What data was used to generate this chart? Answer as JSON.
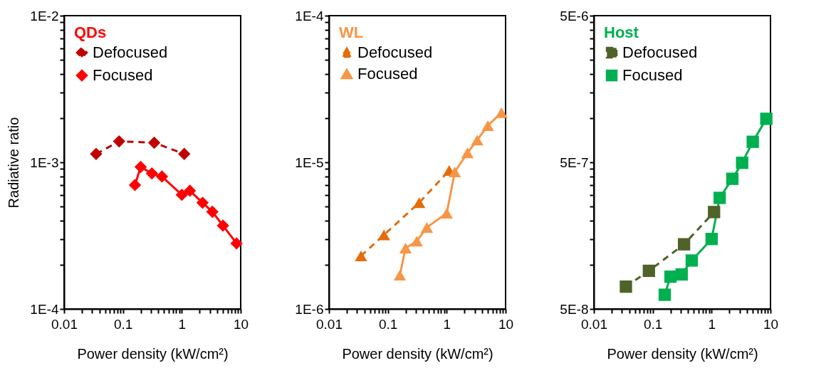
{
  "chart_data": [
    {
      "type": "line",
      "legend_title": "QDs",
      "xlabel": "Power density (kW/cm²)",
      "ylabel": "Radiative ratio",
      "log": "xy",
      "grid": false,
      "legend": "top left",
      "marker": "diamond",
      "xlim": [
        0.01,
        10
      ],
      "ylim": [
        0.0001,
        0.01
      ],
      "xticks": [
        0.01,
        {
          "value": 0.02,
          "label": null
        },
        {
          "value": 0.03,
          "label": null
        },
        {
          "value": 0.04,
          "label": null
        },
        {
          "value": 0.05,
          "label": null
        },
        {
          "value": 0.06,
          "label": null
        },
        {
          "value": 0.07,
          "label": null
        },
        {
          "value": 0.08,
          "label": null
        },
        {
          "value": 0.09,
          "label": null
        },
        0.1,
        {
          "value": 0.2,
          "label": null
        },
        {
          "value": 0.3,
          "label": null
        },
        {
          "value": 0.4,
          "label": null
        },
        {
          "value": 0.5,
          "label": null
        },
        {
          "value": 0.6,
          "label": null
        },
        {
          "value": 0.7,
          "label": null
        },
        {
          "value": 0.8,
          "label": null
        },
        {
          "value": 0.9,
          "label": null
        },
        1,
        {
          "value": 2,
          "label": null
        },
        {
          "value": 3,
          "label": null
        },
        {
          "value": 4,
          "label": null
        },
        {
          "value": 5,
          "label": null
        },
        {
          "value": 6,
          "label": null
        },
        {
          "value": 7,
          "label": null
        },
        {
          "value": 8,
          "label": null
        },
        {
          "value": 9,
          "label": null
        },
        10
      ],
      "yticks": [
        {
          "value": 0.0001,
          "label": "1E-4"
        },
        {
          "value": 0.0002,
          "label": null
        },
        {
          "value": 0.0003,
          "label": null
        },
        {
          "value": 0.0004,
          "label": null
        },
        {
          "value": 0.0005,
          "label": null
        },
        {
          "value": 0.0006,
          "label": null
        },
        {
          "value": 0.0007,
          "label": null
        },
        {
          "value": 0.0008,
          "label": null
        },
        {
          "value": 0.0009,
          "label": null
        },
        {
          "value": 0.001,
          "label": "1E-3"
        },
        {
          "value": 0.002,
          "label": null
        },
        {
          "value": 0.003,
          "label": null
        },
        {
          "value": 0.004,
          "label": null
        },
        {
          "value": 0.005,
          "label": null
        },
        {
          "value": 0.006,
          "label": null
        },
        {
          "value": 0.007,
          "label": null
        },
        {
          "value": 0.008,
          "label": null
        },
        {
          "value": 0.009,
          "label": null
        },
        {
          "value": 0.01,
          "label": "1E-2"
        }
      ],
      "series": [
        {
          "name": "Defocused",
          "color": "#c00000",
          "line_style": "dashed",
          "x": [
            0.035,
            0.086,
            0.34,
            1.1
          ],
          "values": [
            0.00114,
            0.00139,
            0.00136,
            0.00114
          ]
        },
        {
          "name": "Focused",
          "color": "#ff0000",
          "line_style": "solid",
          "x": [
            0.16,
            0.2,
            0.31,
            0.46,
            1.0,
            1.37,
            2.25,
            3.3,
            5.0,
            8.5
          ],
          "values": [
            0.0007,
            0.00093,
            0.00084,
            0.0008,
            0.0006,
            0.00064,
            0.00053,
            0.00046,
            0.00037,
            0.00028
          ]
        }
      ]
    },
    {
      "type": "line",
      "legend_title": "WL",
      "xlabel": "Power density (kW/cm²)",
      "log": "xy",
      "grid": false,
      "legend": "top left",
      "marker": "triangle",
      "xlim": [
        0.01,
        10
      ],
      "ylim": [
        1e-06,
        0.0001
      ],
      "xticks": [
        0.01,
        {
          "value": 0.02,
          "label": null
        },
        {
          "value": 0.03,
          "label": null
        },
        {
          "value": 0.04,
          "label": null
        },
        {
          "value": 0.05,
          "label": null
        },
        {
          "value": 0.06,
          "label": null
        },
        {
          "value": 0.07,
          "label": null
        },
        {
          "value": 0.08,
          "label": null
        },
        {
          "value": 0.09,
          "label": null
        },
        0.1,
        {
          "value": 0.2,
          "label": null
        },
        {
          "value": 0.3,
          "label": null
        },
        {
          "value": 0.4,
          "label": null
        },
        {
          "value": 0.5,
          "label": null
        },
        {
          "value": 0.6,
          "label": null
        },
        {
          "value": 0.7,
          "label": null
        },
        {
          "value": 0.8,
          "label": null
        },
        {
          "value": 0.9,
          "label": null
        },
        1,
        {
          "value": 2,
          "label": null
        },
        {
          "value": 3,
          "label": null
        },
        {
          "value": 4,
          "label": null
        },
        {
          "value": 5,
          "label": null
        },
        {
          "value": 6,
          "label": null
        },
        {
          "value": 7,
          "label": null
        },
        {
          "value": 8,
          "label": null
        },
        {
          "value": 9,
          "label": null
        },
        10
      ],
      "yticks": [
        {
          "value": 1e-06,
          "label": "1E-6"
        },
        {
          "value": 2e-06,
          "label": null
        },
        {
          "value": 3e-06,
          "label": null
        },
        {
          "value": 4e-06,
          "label": null
        },
        {
          "value": 5e-06,
          "label": null
        },
        {
          "value": 6e-06,
          "label": null
        },
        {
          "value": 7e-06,
          "label": null
        },
        {
          "value": 8e-06,
          "label": null
        },
        {
          "value": 9e-06,
          "label": null
        },
        {
          "value": 1e-05,
          "label": "1E-5"
        },
        {
          "value": 2e-05,
          "label": null
        },
        {
          "value": 3e-05,
          "label": null
        },
        {
          "value": 4e-05,
          "label": null
        },
        {
          "value": 5e-05,
          "label": null
        },
        {
          "value": 6e-05,
          "label": null
        },
        {
          "value": 7e-05,
          "label": null
        },
        {
          "value": 8e-05,
          "label": null
        },
        {
          "value": 9e-05,
          "label": null
        },
        {
          "value": 0.0001,
          "label": "1E-4"
        }
      ],
      "series": [
        {
          "name": "Defocused",
          "color": "#e46c0a",
          "line_style": "dashed",
          "x": [
            0.035,
            0.086,
            0.34,
            1.1
          ],
          "values": [
            2.3e-06,
            3.2e-06,
            5.3e-06,
            8.8e-06
          ]
        },
        {
          "name": "Focused",
          "color": "#f79646",
          "line_style": "solid",
          "x": [
            0.16,
            0.2,
            0.31,
            0.46,
            1.0,
            1.37,
            2.25,
            3.3,
            5.0,
            8.5
          ],
          "values": [
            1.7e-06,
            2.6e-06,
            2.9e-06,
            3.6e-06,
            4.5e-06,
            8.6e-06,
            1.16e-05,
            1.42e-05,
            1.78e-05,
            2.18e-05
          ]
        }
      ]
    },
    {
      "type": "line",
      "legend_title": "Host",
      "xlabel": "Power density (kW/cm²)",
      "log": "xy",
      "grid": false,
      "legend": "top left",
      "marker": "square",
      "xlim": [
        0.01,
        10
      ],
      "ylim": [
        5e-08,
        5e-06
      ],
      "xticks": [
        0.01,
        {
          "value": 0.02,
          "label": null
        },
        {
          "value": 0.03,
          "label": null
        },
        {
          "value": 0.04,
          "label": null
        },
        {
          "value": 0.05,
          "label": null
        },
        {
          "value": 0.06,
          "label": null
        },
        {
          "value": 0.07,
          "label": null
        },
        {
          "value": 0.08,
          "label": null
        },
        {
          "value": 0.09,
          "label": null
        },
        0.1,
        {
          "value": 0.2,
          "label": null
        },
        {
          "value": 0.3,
          "label": null
        },
        {
          "value": 0.4,
          "label": null
        },
        {
          "value": 0.5,
          "label": null
        },
        {
          "value": 0.6,
          "label": null
        },
        {
          "value": 0.7,
          "label": null
        },
        {
          "value": 0.8,
          "label": null
        },
        {
          "value": 0.9,
          "label": null
        },
        1,
        {
          "value": 2,
          "label": null
        },
        {
          "value": 3,
          "label": null
        },
        {
          "value": 4,
          "label": null
        },
        {
          "value": 5,
          "label": null
        },
        {
          "value": 6,
          "label": null
        },
        {
          "value": 7,
          "label": null
        },
        {
          "value": 8,
          "label": null
        },
        {
          "value": 9,
          "label": null
        },
        10
      ],
      "yticks": [
        {
          "value": 5e-08,
          "label": "5E-8"
        },
        {
          "value": 1e-07,
          "label": null
        },
        {
          "value": 1.5e-07,
          "label": null
        },
        {
          "value": 2e-07,
          "label": null
        },
        {
          "value": 2.5e-07,
          "label": null
        },
        {
          "value": 3e-07,
          "label": null
        },
        {
          "value": 3.5e-07,
          "label": null
        },
        {
          "value": 4e-07,
          "label": null
        },
        {
          "value": 4.5e-07,
          "label": null
        },
        {
          "value": 5e-07,
          "label": "5E-7"
        },
        {
          "value": 1e-06,
          "label": null
        },
        {
          "value": 1.5e-06,
          "label": null
        },
        {
          "value": 2e-06,
          "label": null
        },
        {
          "value": 2.5e-06,
          "label": null
        },
        {
          "value": 3e-06,
          "label": null
        },
        {
          "value": 3.5e-06,
          "label": null
        },
        {
          "value": 4e-06,
          "label": null
        },
        {
          "value": 4.5e-06,
          "label": null
        },
        {
          "value": 5e-06,
          "label": "5E-6"
        }
      ],
      "series": [
        {
          "name": "Defocused",
          "color": "#4f6228",
          "line_style": "dashed",
          "x": [
            0.035,
            0.086,
            0.34,
            1.1
          ],
          "values": [
            7.1e-08,
            9.1e-08,
            1.38e-07,
            2.29e-07
          ]
        },
        {
          "name": "Focused",
          "color": "#00b050",
          "line_style": "solid",
          "x": [
            0.16,
            0.2,
            0.31,
            0.46,
            1.0,
            1.37,
            2.25,
            3.3,
            5.0,
            8.5
          ],
          "values": [
            6.25e-08,
            8.3e-08,
            8.6e-08,
            1.07e-07,
            1.5e-07,
            2.86e-07,
            3.86e-07,
            4.96e-07,
            6.9e-07,
            9.9e-07
          ]
        }
      ]
    }
  ]
}
